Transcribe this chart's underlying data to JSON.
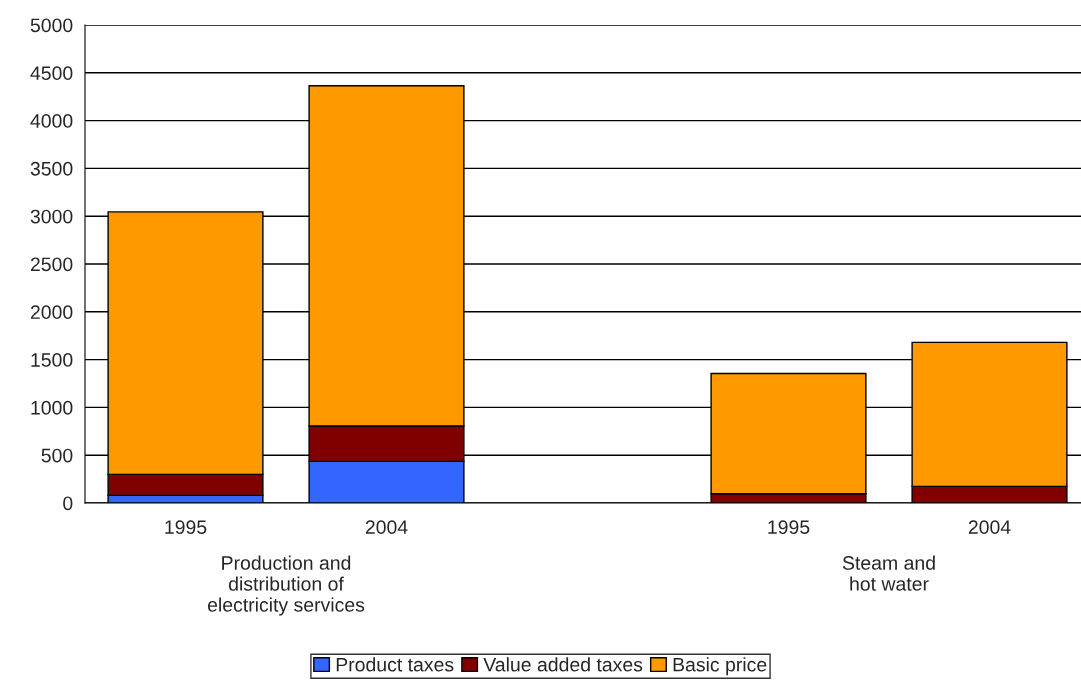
{
  "chart_data": {
    "type": "bar",
    "stacked": true,
    "categories": [
      "1995",
      "2004",
      null,
      "1995",
      "2004"
    ],
    "series": [
      {
        "name": "Product taxes",
        "color": "#3366ff",
        "values": [
          80,
          435,
          null,
          0,
          0
        ]
      },
      {
        "name": "Value added taxes",
        "color": "#800000",
        "values": [
          220,
          370,
          null,
          97,
          174
        ]
      },
      {
        "name": "Basic price",
        "color": "#ff9900",
        "values": [
          2745,
          3560,
          null,
          1258,
          1506
        ]
      }
    ],
    "annotations": [
      "Production and\ndistribution of\nelectricity services",
      "Steam and\nhot water"
    ],
    "ylim": [
      0,
      5000
    ],
    "yticks": [
      0,
      500,
      1000,
      1500,
      2000,
      2500,
      3000,
      3500,
      4000,
      4500,
      5000
    ],
    "grid": "y",
    "legend": "bottom"
  }
}
